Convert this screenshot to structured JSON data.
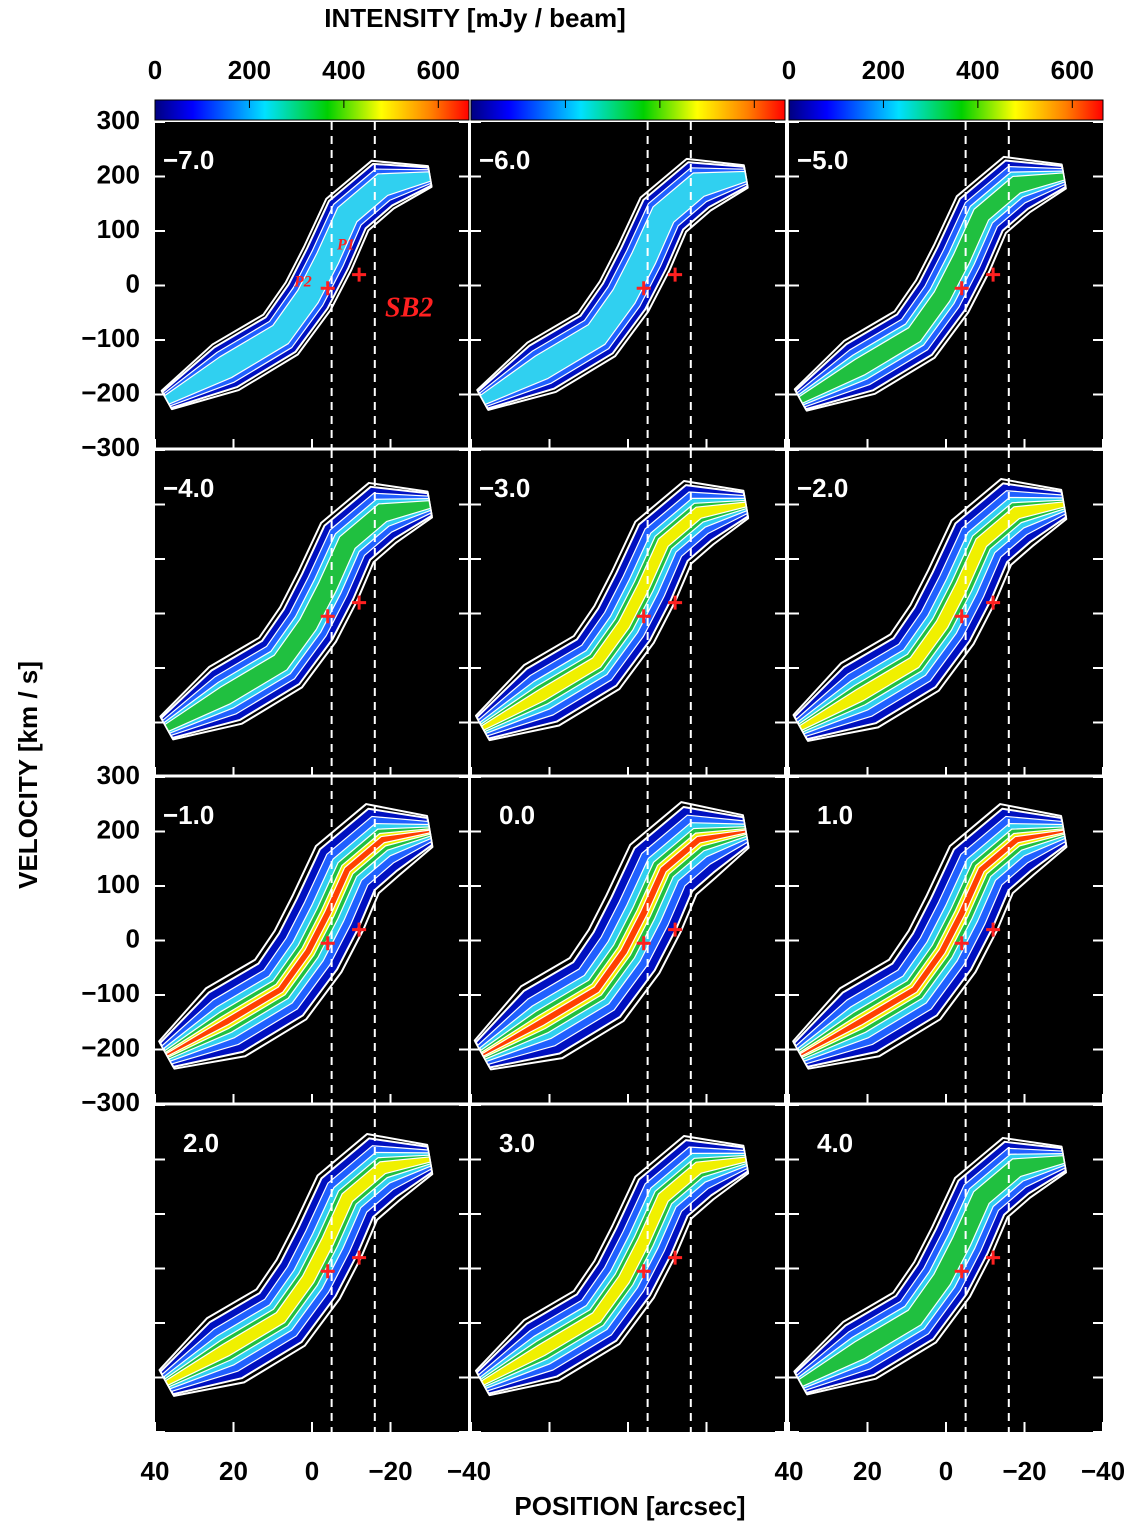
{
  "chart_data": {
    "type": "image-grid",
    "title": "INTENSITY  [mJy / beam]",
    "colorbar": {
      "clim": [
        0,
        665
      ],
      "ticks": [
        0,
        200,
        400,
        600
      ]
    },
    "xlabel": "POSITION  [arcsec]",
    "ylabel": "VELOCITY  [km / s]",
    "xlim": [
      40,
      -40
    ],
    "xticks": [
      40,
      20,
      0,
      {
        "value": -20,
        "label": "−20"
      },
      {
        "value": -40,
        "label": "−40"
      }
    ],
    "ylim": [
      -300,
      300
    ],
    "yticks": [
      {
        "value": -300,
        "label": "−300"
      },
      {
        "value": -200,
        "label": "−200"
      },
      {
        "value": -100,
        "label": "−100"
      },
      0,
      100,
      200,
      300
    ],
    "panels": [
      "−7.0",
      "−6.0",
      "−5.0",
      "−4.0",
      "−3.0",
      "−2.0",
      "−1.0",
      "0.0",
      "1.0",
      "2.0",
      "3.0",
      "4.0"
    ],
    "dashed_x": [
      -5,
      -16
    ],
    "annotations": [
      "SB2",
      "P1",
      "P2"
    ]
  }
}
